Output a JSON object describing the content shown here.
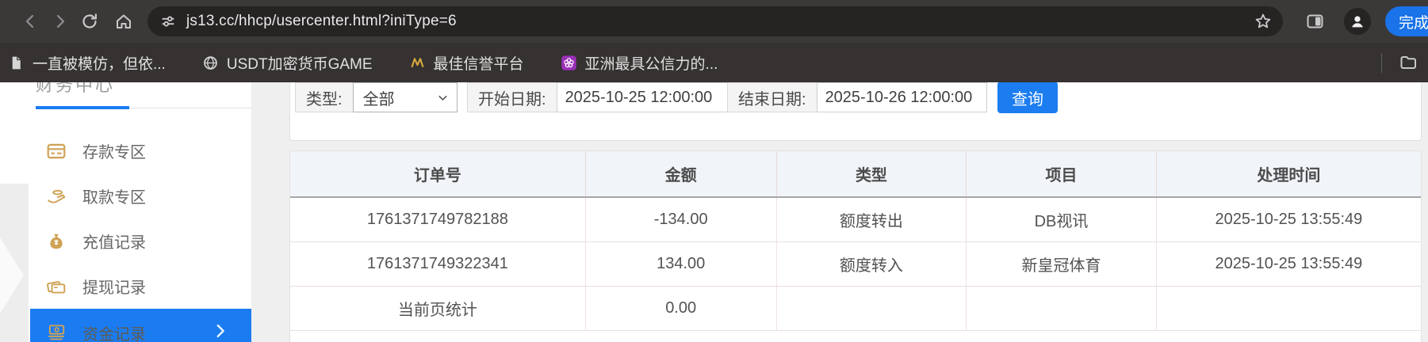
{
  "browser": {
    "url": "js13.cc/hhcp/usercenter.html?iniType=6",
    "done_button": "完成",
    "bookmarks": [
      {
        "label": "一直被模仿，但依...",
        "icon": "page-icon"
      },
      {
        "label": "USDT加密货币GAME",
        "icon": "globe-icon"
      },
      {
        "label": "最佳信誉平台",
        "icon": "gold-logo-icon"
      },
      {
        "label": "亚洲最具公信力的...",
        "icon": "purple-flower-icon"
      }
    ]
  },
  "sidebar": {
    "section_title": "财务中心",
    "items": [
      {
        "key": "deposit-zone",
        "label": "存款专区",
        "icon": "deposit-card-icon",
        "active": false
      },
      {
        "key": "withdraw-zone",
        "label": "取款专区",
        "icon": "withdraw-hand-icon",
        "active": false
      },
      {
        "key": "recharge-records",
        "label": "充值记录",
        "icon": "recharge-bag-icon",
        "active": false
      },
      {
        "key": "withdrawal-records",
        "label": "提现记录",
        "icon": "withdrawal-wallet-icon",
        "active": false
      },
      {
        "key": "funds-records",
        "label": "资金记录",
        "icon": "funds-record-icon",
        "active": true
      }
    ]
  },
  "filters": {
    "type_label": "类型:",
    "type_value": "全部",
    "start_label": "开始日期:",
    "start_value": "2025-10-25 12:00:00",
    "end_label": "结束日期:",
    "end_value": "2025-10-26 12:00:00",
    "search_button": "查询"
  },
  "table": {
    "headers": [
      "订单号",
      "金额",
      "类型",
      "项目",
      "处理时间"
    ],
    "rows": [
      [
        "1761371749782188",
        "-134.00",
        "额度转出",
        "DB视讯",
        "2025-10-25 13:55:49"
      ],
      [
        "1761371749322341",
        "134.00",
        "额度转入",
        "新皇冠体育",
        "2025-10-25 13:55:49"
      ],
      [
        "当前页统计",
        "0.00",
        "",
        "",
        ""
      ]
    ]
  },
  "colors": {
    "site_accent_blue": "#1b7cf2",
    "chrome_accent_blue": "#1a73e8",
    "sidebar_icon_gold": "#cfa254",
    "table_header_bg": "#f1f4f8"
  }
}
